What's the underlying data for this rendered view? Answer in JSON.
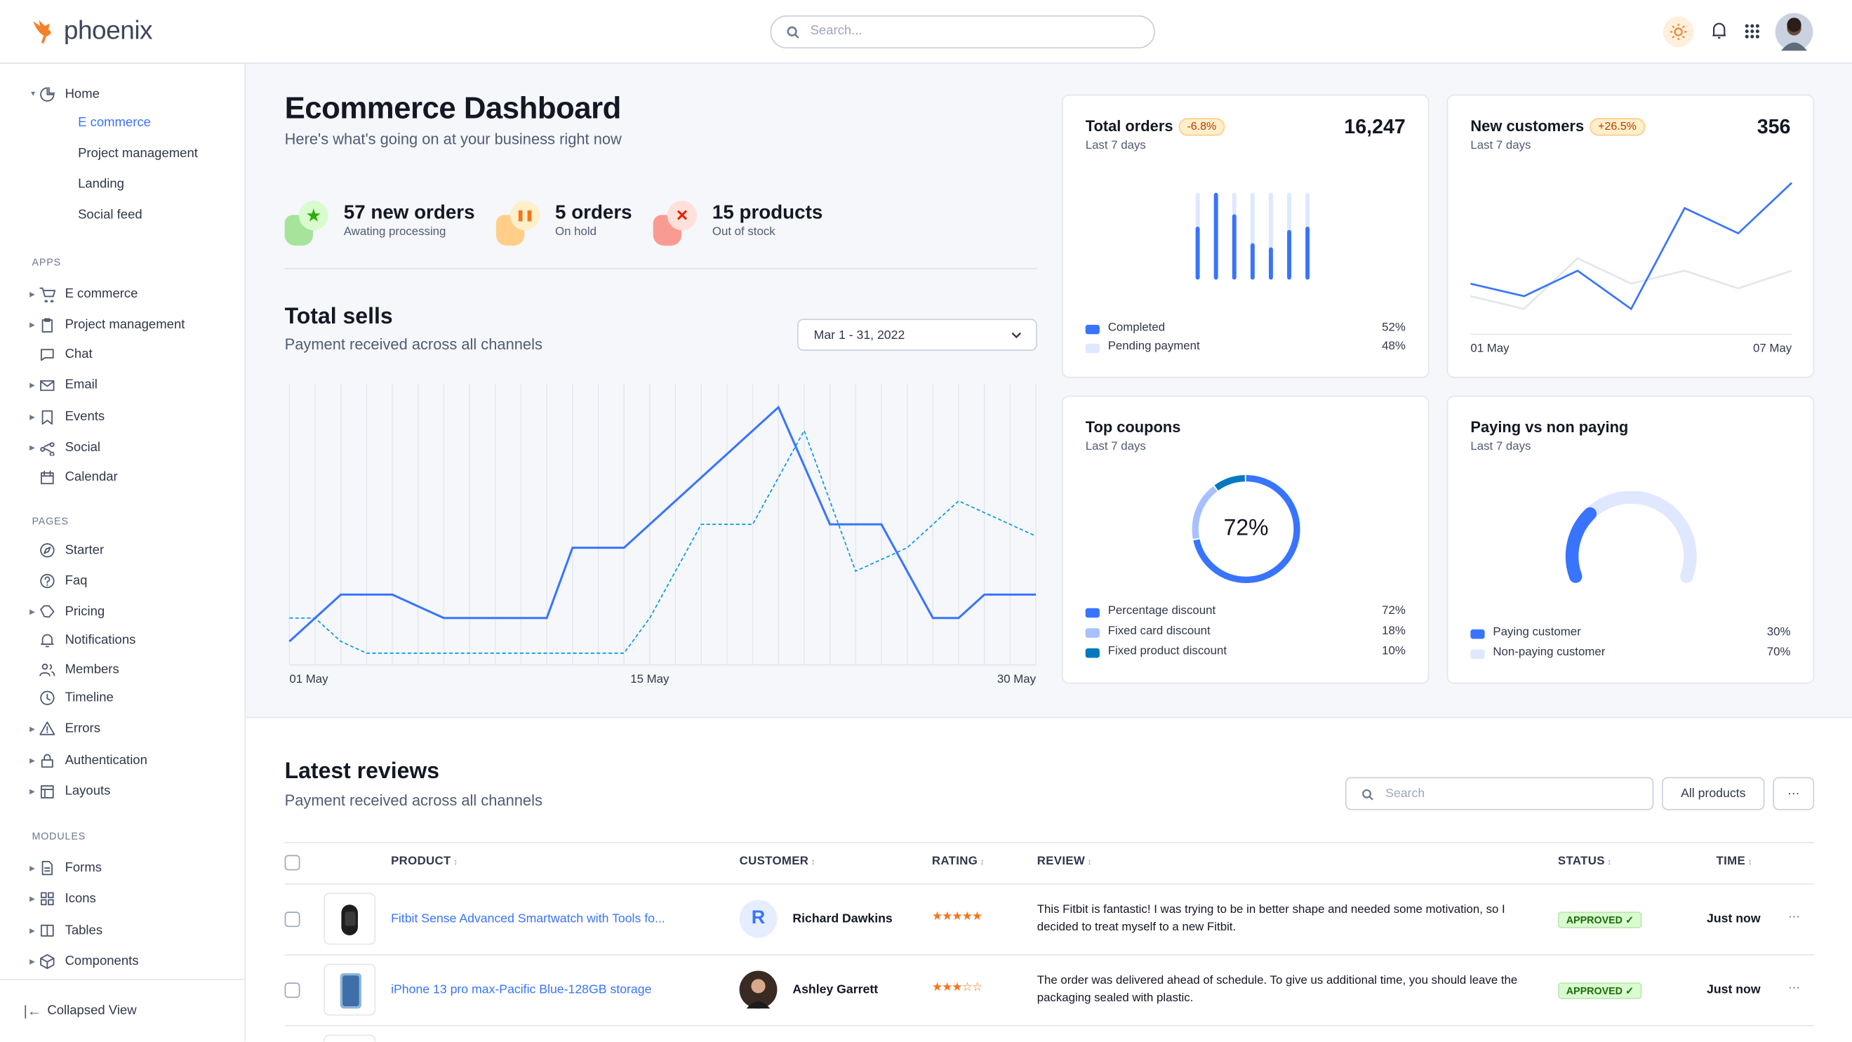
{
  "app": {
    "name": "phoenix",
    "search_placeholder": "Search..."
  },
  "header_icons": [
    "sun-icon",
    "bell-icon",
    "apps-grid-icon",
    "avatar"
  ],
  "colors": {
    "primary": "#3874ff",
    "light_primary": "#dfe8ff",
    "success": "#25b003",
    "warning": "#f97316",
    "danger": "#ec1f00"
  },
  "sidebar": {
    "home": {
      "label": "Home",
      "children": [
        "E commerce",
        "Project management",
        "Landing",
        "Social feed"
      ],
      "active": "E commerce"
    },
    "sections": [
      {
        "title": "APPS",
        "items": [
          {
            "label": "E commerce",
            "icon": "cart-icon",
            "caret": true
          },
          {
            "label": "Project management",
            "icon": "clipboard-icon",
            "caret": true
          },
          {
            "label": "Chat",
            "icon": "chat-icon",
            "caret": false
          },
          {
            "label": "Email",
            "icon": "mail-icon",
            "caret": true
          },
          {
            "label": "Events",
            "icon": "bookmark-icon",
            "caret": true
          },
          {
            "label": "Social",
            "icon": "share-icon",
            "caret": true
          },
          {
            "label": "Calendar",
            "icon": "calendar-icon",
            "caret": false
          }
        ]
      },
      {
        "title": "PAGES",
        "items": [
          {
            "label": "Starter",
            "icon": "compass-icon",
            "caret": false
          },
          {
            "label": "Faq",
            "icon": "help-circle-icon",
            "caret": false
          },
          {
            "label": "Pricing",
            "icon": "tag-icon",
            "caret": true
          },
          {
            "label": "Notifications",
            "icon": "bell-icon",
            "caret": false
          },
          {
            "label": "Members",
            "icon": "users-icon",
            "caret": false
          },
          {
            "label": "Timeline",
            "icon": "clock-icon",
            "caret": false
          },
          {
            "label": "Errors",
            "icon": "alert-triangle-icon",
            "caret": true
          },
          {
            "label": "Authentication",
            "icon": "lock-icon",
            "caret": true
          },
          {
            "label": "Layouts",
            "icon": "layout-icon",
            "caret": true
          }
        ]
      },
      {
        "title": "MODULES",
        "items": [
          {
            "label": "Forms",
            "icon": "file-text-icon",
            "caret": true
          },
          {
            "label": "Icons",
            "icon": "grid-icon",
            "caret": true
          },
          {
            "label": "Tables",
            "icon": "columns-icon",
            "caret": true
          },
          {
            "label": "Components",
            "icon": "package-icon",
            "caret": true
          }
        ]
      }
    ],
    "collapse_label": "Collapsed View"
  },
  "page": {
    "title": "Ecommerce Dashboard",
    "subtitle": "Here's what's going on at your business right now",
    "stats": [
      {
        "value": "57 new orders",
        "label": "Awating processing",
        "icon": "star-icon",
        "color": "#25b003"
      },
      {
        "value": "5 orders",
        "label": "On hold",
        "icon": "pause-icon",
        "color": "#f97316"
      },
      {
        "value": "15 products",
        "label": "Out of stock",
        "icon": "x-icon",
        "color": "#ec1f00"
      }
    ]
  },
  "total_sells": {
    "title": "Total sells",
    "subtitle": "Payment received across all channels",
    "date_range": "Mar 1 - 31, 2022"
  },
  "chart_data": [
    {
      "type": "line",
      "x_tick_labels": [
        "01 May",
        "15 May",
        "30 May"
      ],
      "x": [
        "01 May",
        "02 May",
        "03 May",
        "04 May",
        "05 May",
        "06 May",
        "07 May",
        "08 May",
        "09 May",
        "10 May",
        "11 May",
        "12 May",
        "13 May",
        "14 May",
        "15 May",
        "16 May",
        "17 May",
        "18 May",
        "19 May",
        "20 May",
        "21 May",
        "22 May",
        "23 May",
        "24 May",
        "25 May",
        "26 May",
        "27 May",
        "28 May",
        "29 May",
        "30 May"
      ],
      "series": [
        {
          "style": "solid",
          "color": "#3874ff",
          "values": [
            1,
            2,
            3,
            3,
            3,
            2.5,
            2,
            2,
            2,
            2,
            2,
            5,
            5,
            5,
            6,
            7,
            8,
            9,
            10,
            11,
            8.5,
            6,
            6,
            6,
            4,
            2,
            2,
            3,
            3,
            3
          ]
        },
        {
          "style": "dashed",
          "color": "#0097eb",
          "values": [
            2,
            2,
            1,
            0.5,
            0.5,
            0.5,
            0.5,
            0.5,
            0.5,
            0.5,
            0.5,
            0.5,
            0.5,
            0.5,
            2,
            4,
            6,
            6,
            6,
            8,
            10,
            7,
            4,
            4.5,
            5,
            6,
            7,
            6.5,
            6,
            5.5
          ]
        }
      ],
      "ylim": [
        0,
        12
      ],
      "grid": "vertical"
    },
    {
      "type": "bar",
      "title": "Total orders",
      "subtitle": "Last 7 days",
      "value": "16,247",
      "change": "-6.8%",
      "series": [
        {
          "name": "Completed",
          "color": "#3874ff",
          "values": [
            0.59,
            1.0,
            0.74,
            0.39,
            0.34,
            0.55,
            0.59
          ]
        }
      ],
      "track_color": "#dfe8ff",
      "legend": [
        {
          "name": "Completed",
          "value": "52%",
          "color": "#3874ff"
        },
        {
          "name": "Pending payment",
          "value": "48%",
          "color": "#dfe8ff"
        }
      ]
    },
    {
      "type": "line",
      "title": "New customers",
      "subtitle": "Last 7 days",
      "value": "356",
      "change": "+26.5%",
      "x_tick_labels": [
        "01 May",
        "07 May"
      ],
      "series": [
        {
          "color": "#3874ff",
          "values": [
            21.4,
            16.1,
            26.9,
            10.7,
            53.4,
            42.7,
            64.1
          ]
        },
        {
          "color": "#e3e6ed",
          "values": [
            16.1,
            10.7,
            32.2,
            21.4,
            26.9,
            19.4,
            26.9
          ]
        }
      ],
      "ylim": [
        0,
        70
      ]
    },
    {
      "type": "pie",
      "title": "Top coupons",
      "subtitle": "Last 7 days",
      "center_label": "72%",
      "slices": [
        {
          "name": "Percentage discount",
          "value": 72,
          "label": "72%",
          "color": "#3874ff"
        },
        {
          "name": "Fixed card discount",
          "value": 18,
          "label": "18%",
          "color": "#a7c1ff"
        },
        {
          "name": "Fixed product discount",
          "value": 10,
          "label": "10%",
          "color": "#0079c0"
        }
      ]
    },
    {
      "type": "pie",
      "title": "Paying vs non paying",
      "subtitle": "Last 7 days",
      "slices": [
        {
          "name": "Paying customer",
          "value": 30,
          "label": "30%",
          "color": "#3874ff"
        },
        {
          "name": "Non-paying customer",
          "value": 70,
          "label": "70%",
          "color": "#dfe8ff"
        }
      ]
    }
  ],
  "reviews": {
    "title": "Latest reviews",
    "subtitle": "Payment received across all channels",
    "search_placeholder": "Search",
    "filter_label": "All products",
    "more_label": "···",
    "columns": [
      "PRODUCT",
      "CUSTOMER",
      "RATING",
      "REVIEW",
      "STATUS",
      "TIME"
    ],
    "rows": [
      {
        "product": "Fitbit Sense Advanced Smartwatch with Tools fo...",
        "customer": "Richard Dawkins",
        "avatar_letter": "R",
        "rating": 5,
        "stars": "★★★★★",
        "review": "This Fitbit is fantastic! I was trying to be in better shape and needed some motivation, so I decided to treat myself to a new Fitbit.",
        "status": "APPROVED ✓",
        "time": "Just now"
      },
      {
        "product": "iPhone 13 pro max-Pacific Blue-128GB storage",
        "customer": "Ashley Garrett",
        "avatar_letter": "",
        "rating": 3,
        "stars": "★★★☆☆",
        "review": "The order was delivered ahead of schedule. To give us additional time, you should leave the packaging sealed with plastic.",
        "status": "APPROVED ✓",
        "time": "Just now"
      }
    ]
  }
}
